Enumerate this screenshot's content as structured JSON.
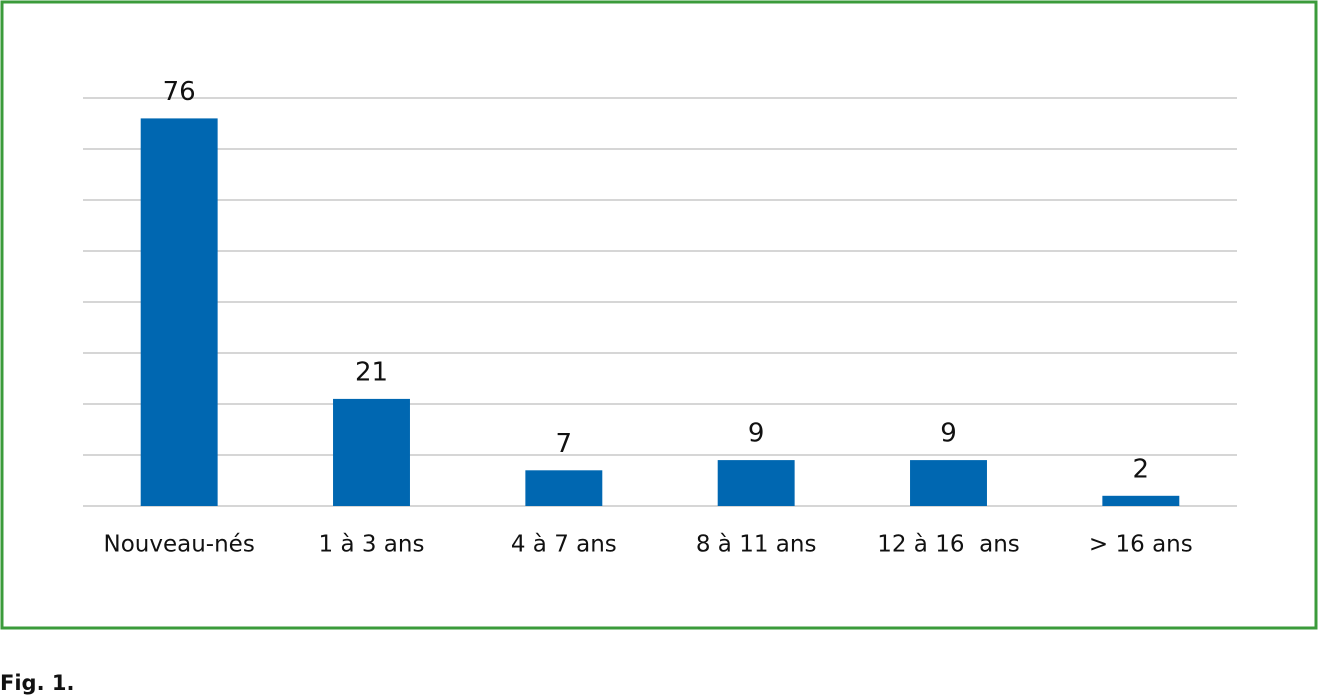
{
  "chart_data": {
    "type": "bar",
    "categories": [
      "Nouveau-nés",
      "1 à 3 ans",
      "4 à 7 ans",
      "8 à 11 ans",
      "12 à 16  ans",
      "> 16 ans"
    ],
    "values": [
      76,
      21,
      7,
      9,
      9,
      2
    ],
    "color": "#0067b1",
    "ylim": [
      0,
      80
    ],
    "yticks": [
      0,
      10,
      20,
      30,
      40,
      50,
      60,
      70,
      80
    ],
    "grid": true,
    "caption": "Fig. 1."
  }
}
